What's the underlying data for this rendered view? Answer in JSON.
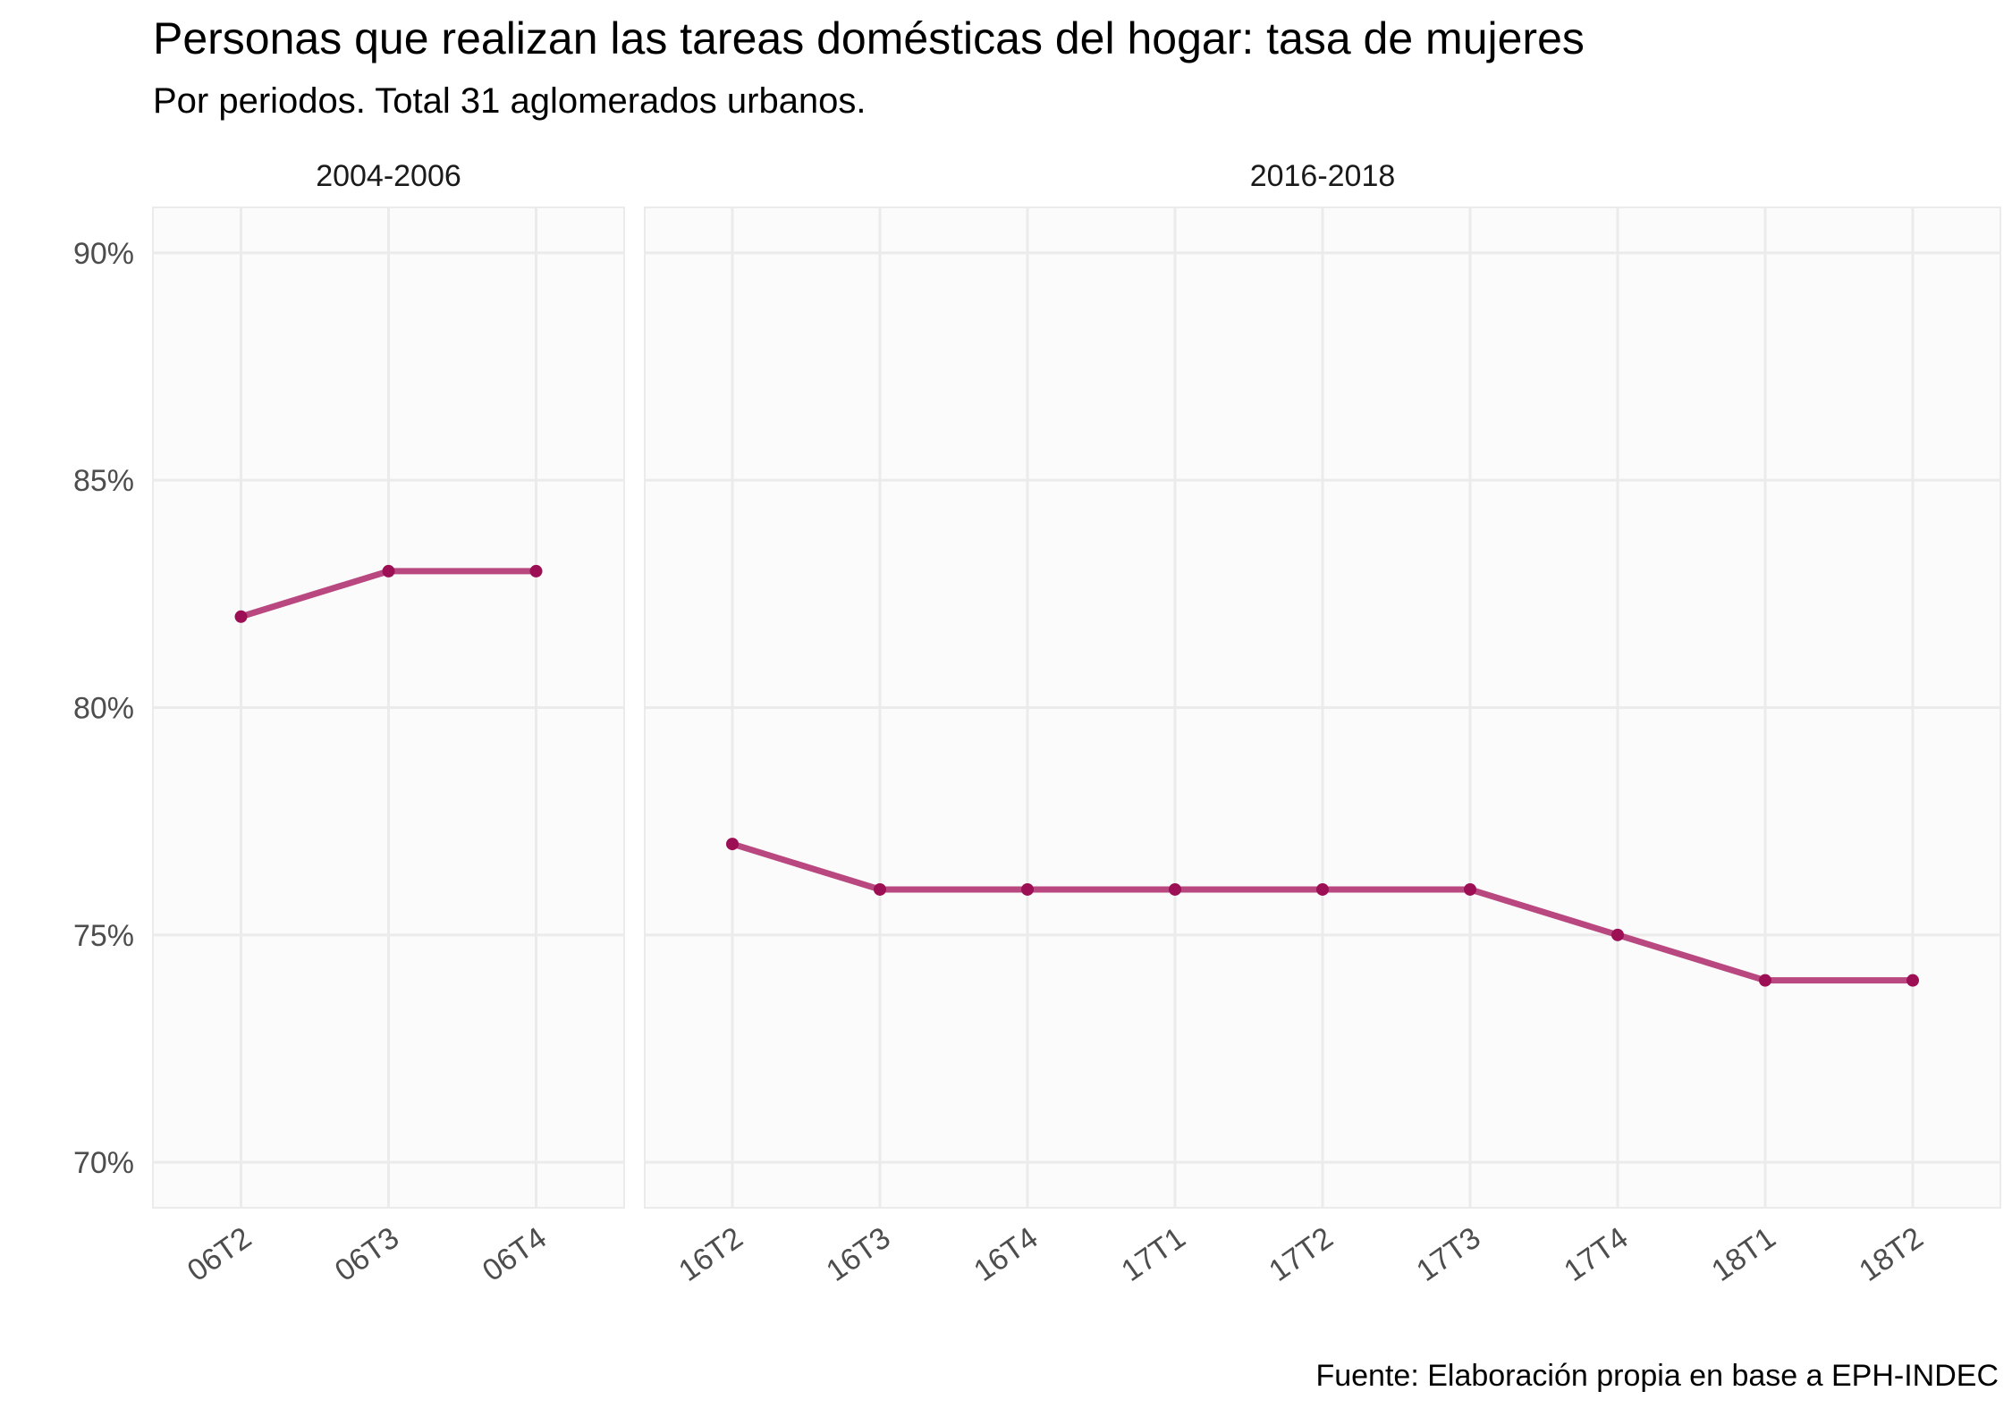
{
  "chart_data": {
    "type": "line",
    "title": "Personas que realizan las tareas domésticas del hogar: tasa de mujeres",
    "subtitle": "Por periodos. Total 31 aglomerados urbanos.",
    "caption": "Fuente: Elaboración propia en base a EPH-INDEC",
    "xlabel": "",
    "ylabel": "",
    "ylim": [
      69,
      91
    ],
    "yticks": [
      70,
      75,
      80,
      85,
      90
    ],
    "ytick_labels": [
      "70%",
      "75%",
      "80%",
      "85%",
      "90%"
    ],
    "grid": true,
    "colors": {
      "line": "#b8487f",
      "point": "#9c0f55",
      "panel": "#fbfbfb",
      "grid": "#ebebeb"
    },
    "facets": [
      {
        "label": "2004-2006",
        "categories": [
          "06T2",
          "06T3",
          "06T4"
        ],
        "values": [
          82,
          83,
          83
        ]
      },
      {
        "label": "2016-2018",
        "categories": [
          "16T2",
          "16T3",
          "16T4",
          "17T1",
          "17T2",
          "17T3",
          "17T4",
          "18T1",
          "18T2"
        ],
        "values": [
          77,
          76,
          76,
          76,
          76,
          76,
          75,
          74,
          74
        ]
      }
    ]
  }
}
